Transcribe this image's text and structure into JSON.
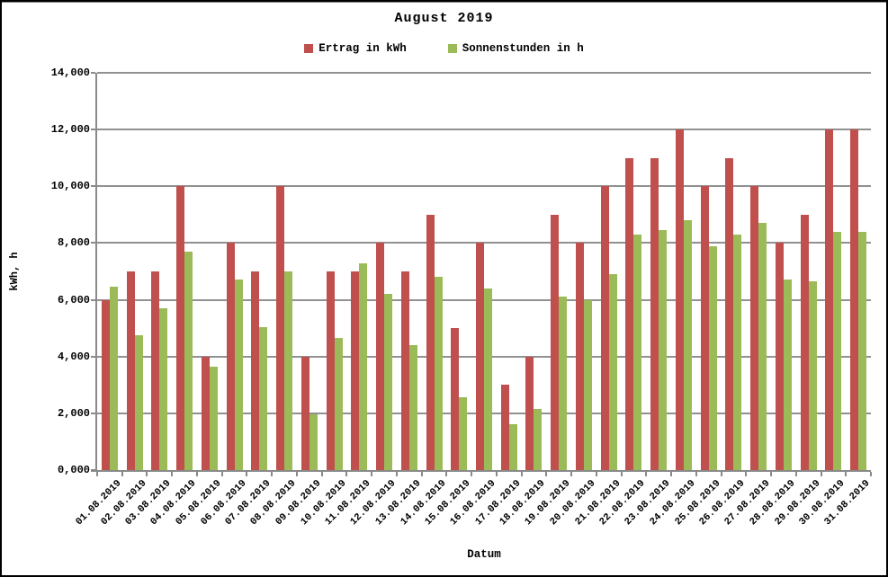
{
  "chart_data": {
    "type": "bar",
    "title": "August 2019",
    "xlabel": "Datum",
    "ylabel": "kWh, h",
    "ylim": [
      0,
      14
    ],
    "grid": true,
    "legend_position": "top",
    "colors": {
      "ertrag": "#C0504D",
      "sonnenstunden": "#9BBB59",
      "gridline": "#919191",
      "axis": "#8a8a8a",
      "background": "#FFFFFF",
      "frame_border": "#000000",
      "text": "#000000"
    },
    "y_tick_values": [
      0,
      2,
      4,
      6,
      8,
      10,
      12,
      14
    ],
    "y_tick_labels": [
      "0,000",
      "2,000",
      "4,000",
      "6,000",
      "8,000",
      "10,000",
      "12,000",
      "14,000"
    ],
    "categories": [
      "01.08.2019",
      "02.08.2019",
      "03.08.2019",
      "04.08.2019",
      "05.08.2019",
      "06.08.2019",
      "07.08.2019",
      "08.08.2019",
      "09.08.2019",
      "10.08.2019",
      "11.08.2019",
      "12.08.2019",
      "13.08.2019",
      "14.08.2019",
      "15.08.2019",
      "16.08.2019",
      "17.08.2019",
      "18.08.2019",
      "19.08.2019",
      "20.08.2019",
      "21.08.2019",
      "22.08.2019",
      "23.08.2019",
      "24.08.2019",
      "25.08.2019",
      "26.08.2019",
      "27.08.2019",
      "28.08.2019",
      "29.08.2019",
      "30.08.2019",
      "31.08.2019"
    ],
    "series": [
      {
        "name": "Ertrag in kWh",
        "color_key": "ertrag",
        "values": [
          6,
          7,
          7,
          10,
          4,
          8,
          7,
          10,
          4,
          7,
          7,
          8,
          7,
          9,
          5,
          8,
          3,
          4,
          9,
          8,
          10,
          11,
          11,
          12,
          10,
          11,
          10,
          8,
          9,
          12,
          12
        ]
      },
      {
        "name": "Sonnenstunden in h",
        "color_key": "sonnenstunden",
        "values": [
          6.45,
          4.75,
          5.7,
          7.7,
          3.65,
          6.7,
          5.05,
          7.0,
          1.95,
          4.65,
          7.3,
          6.2,
          4.4,
          6.8,
          2.55,
          6.4,
          1.6,
          2.15,
          6.1,
          6.0,
          6.9,
          8.3,
          8.45,
          8.8,
          7.9,
          8.3,
          8.7,
          6.7,
          6.65,
          8.4,
          8.4
        ]
      }
    ]
  }
}
